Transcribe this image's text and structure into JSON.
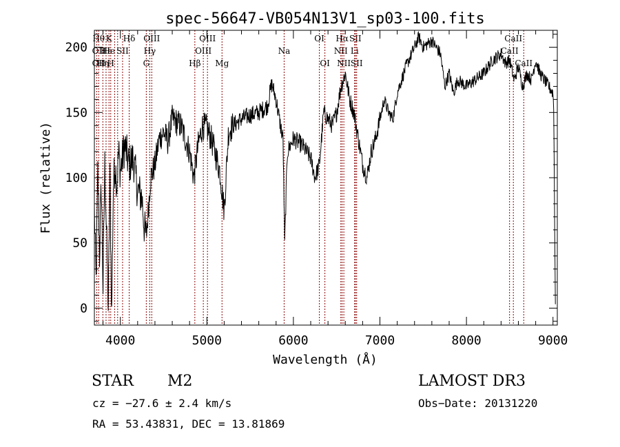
{
  "chart_data": {
    "type": "line",
    "title": "spec-56647-VB054N13V1_sp03-100.fits",
    "xlabel": "Wavelength (Å)",
    "ylabel": "Flux (relative)",
    "xlim": [
      3700,
      9050
    ],
    "ylim": [
      -13,
      213
    ],
    "x_ticks": [
      4000,
      5000,
      6000,
      7000,
      8000,
      9000
    ],
    "y_ticks": [
      0,
      50,
      100,
      150,
      200
    ],
    "grid": false,
    "line_color": "#000000",
    "line_marker_color": "#8b0000",
    "spectrum_anchors": [
      [
        3700,
        75
      ],
      [
        3720,
        20
      ],
      [
        3740,
        105
      ],
      [
        3760,
        40
      ],
      [
        3780,
        95
      ],
      [
        3800,
        15
      ],
      [
        3820,
        110
      ],
      [
        3840,
        60
      ],
      [
        3860,
        0
      ],
      [
        3880,
        100
      ],
      [
        3900,
        -5
      ],
      [
        3920,
        95
      ],
      [
        3940,
        110
      ],
      [
        3960,
        95
      ],
      [
        3980,
        120
      ],
      [
        4000,
        105
      ],
      [
        4050,
        125
      ],
      [
        4100,
        110
      ],
      [
        4150,
        115
      ],
      [
        4200,
        90
      ],
      [
        4250,
        85
      ],
      [
        4280,
        60
      ],
      [
        4300,
        55
      ],
      [
        4350,
        100
      ],
      [
        4400,
        110
      ],
      [
        4450,
        130
      ],
      [
        4500,
        135
      ],
      [
        4550,
        128
      ],
      [
        4600,
        145
      ],
      [
        4700,
        140
      ],
      [
        4800,
        120
      ],
      [
        4850,
        100
      ],
      [
        4900,
        125
      ],
      [
        4950,
        140
      ],
      [
        5000,
        138
      ],
      [
        5050,
        130
      ],
      [
        5100,
        118
      ],
      [
        5150,
        105
      ],
      [
        5200,
        75
      ],
      [
        5250,
        135
      ],
      [
        5300,
        140
      ],
      [
        5400,
        145
      ],
      [
        5500,
        148
      ],
      [
        5600,
        150
      ],
      [
        5700,
        155
      ],
      [
        5750,
        172
      ],
      [
        5800,
        160
      ],
      [
        5850,
        140
      ],
      [
        5880,
        130
      ],
      [
        5900,
        50
      ],
      [
        5930,
        120
      ],
      [
        6000,
        130
      ],
      [
        6100,
        125
      ],
      [
        6200,
        115
      ],
      [
        6250,
        100
      ],
      [
        6300,
        110
      ],
      [
        6350,
        150
      ],
      [
        6400,
        145
      ],
      [
        6450,
        140
      ],
      [
        6500,
        150
      ],
      [
        6550,
        170
      ],
      [
        6600,
        180
      ],
      [
        6650,
        160
      ],
      [
        6700,
        150
      ],
      [
        6750,
        130
      ],
      [
        6800,
        110
      ],
      [
        6850,
        100
      ],
      [
        6900,
        120
      ],
      [
        6950,
        130
      ],
      [
        7000,
        145
      ],
      [
        7050,
        160
      ],
      [
        7100,
        150
      ],
      [
        7150,
        145
      ],
      [
        7200,
        165
      ],
      [
        7300,
        185
      ],
      [
        7400,
        200
      ],
      [
        7450,
        208
      ],
      [
        7500,
        200
      ],
      [
        7600,
        205
      ],
      [
        7700,
        195
      ],
      [
        7750,
        170
      ],
      [
        7800,
        180
      ],
      [
        7850,
        165
      ],
      [
        7900,
        175
      ],
      [
        8000,
        170
      ],
      [
        8100,
        175
      ],
      [
        8200,
        180
      ],
      [
        8300,
        190
      ],
      [
        8400,
        195
      ],
      [
        8450,
        188
      ],
      [
        8500,
        190
      ],
      [
        8550,
        175
      ],
      [
        8600,
        185
      ],
      [
        8650,
        170
      ],
      [
        8700,
        180
      ],
      [
        8750,
        175
      ],
      [
        8800,
        190
      ],
      [
        8850,
        180
      ],
      [
        8900,
        175
      ],
      [
        8950,
        170
      ],
      [
        9000,
        165
      ],
      [
        9010,
        150
      ],
      [
        9020,
        60
      ],
      [
        9030,
        -10
      ]
    ],
    "line_markers": [
      {
        "wl": 3727,
        "labels": [],
        "row": []
      },
      {
        "wl": 3750,
        "labels": [
          "Hθ",
          "OII",
          "OII"
        ],
        "row": [
          0,
          1,
          2
        ]
      },
      {
        "wl": 3798,
        "labels": [
          "Hη"
        ],
        "row": [
          2
        ]
      },
      {
        "wl": 3835,
        "labels": [
          "Hε"
        ],
        "row": [
          1
        ]
      },
      {
        "wl": 3869,
        "labels": [
          "K",
          "He"
        ],
        "row": [
          0,
          1
        ]
      },
      {
        "wl": 3889,
        "labels": [
          "H"
        ],
        "row": [
          2
        ]
      },
      {
        "wl": 3934,
        "labels": [],
        "row": []
      },
      {
        "wl": 3969,
        "labels": [],
        "row": []
      },
      {
        "wl": 4026,
        "labels": [
          "SII"
        ],
        "row": [
          1
        ]
      },
      {
        "wl": 4102,
        "labels": [
          "Hδ"
        ],
        "row": [
          0
        ]
      },
      {
        "wl": 4300,
        "labels": [
          "G"
        ],
        "row": [
          2
        ]
      },
      {
        "wl": 4340,
        "labels": [
          "Hγ"
        ],
        "row": [
          1
        ]
      },
      {
        "wl": 4363,
        "labels": [
          "OIII"
        ],
        "row": [
          0
        ]
      },
      {
        "wl": 4861,
        "labels": [
          "Hβ"
        ],
        "row": [
          2
        ]
      },
      {
        "wl": 4959,
        "labels": [
          "OIII"
        ],
        "row": [
          1
        ]
      },
      {
        "wl": 5007,
        "labels": [
          "OIII"
        ],
        "row": [
          0
        ]
      },
      {
        "wl": 5175,
        "labels": [
          "Mg"
        ],
        "row": [
          2
        ]
      },
      {
        "wl": 5893,
        "labels": [
          "Na"
        ],
        "row": [
          1
        ]
      },
      {
        "wl": 6300,
        "labels": [
          "OI"
        ],
        "row": [
          0
        ]
      },
      {
        "wl": 6364,
        "labels": [
          "OI"
        ],
        "row": [
          2
        ]
      },
      {
        "wl": 6548,
        "labels": [
          "NII"
        ],
        "row": [
          1
        ]
      },
      {
        "wl": 6563,
        "labels": [
          "Hα"
        ],
        "row": [
          0
        ]
      },
      {
        "wl": 6583,
        "labels": [
          "NII"
        ],
        "row": [
          2
        ]
      },
      {
        "wl": 6708,
        "labels": [
          "Li"
        ],
        "row": [
          1
        ]
      },
      {
        "wl": 6716,
        "labels": [
          "SII"
        ],
        "row": [
          0
        ]
      },
      {
        "wl": 6731,
        "labels": [
          "SII"
        ],
        "row": [
          2
        ]
      },
      {
        "wl": 8498,
        "labels": [
          "CaII"
        ],
        "row": [
          1
        ]
      },
      {
        "wl": 8542,
        "labels": [
          "CaII"
        ],
        "row": [
          0
        ]
      },
      {
        "wl": 8662,
        "labels": [
          "CaII"
        ],
        "row": [
          2
        ]
      }
    ]
  },
  "info": {
    "object_class": "STAR",
    "subclass": "M2",
    "survey": "LAMOST DR3",
    "redshift_line": "cz = −27.6 ± 2.4 km/s",
    "obs_date": "Obs−Date: 20131220",
    "coords": "RA =  53.43831, DEC =  13.81869"
  }
}
